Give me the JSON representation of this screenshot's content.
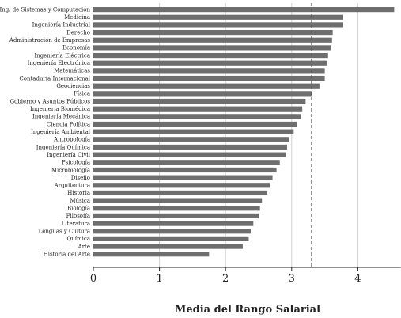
{
  "chart_data": {
    "type": "bar",
    "orientation": "horizontal",
    "title": "",
    "xlabel": "Media del Rango Salarial",
    "ylabel": "",
    "xlim": [
      0,
      4.65
    ],
    "xticks": [
      "0",
      "1",
      "2",
      "3",
      "4"
    ],
    "grid": true,
    "reference_line": 3.3,
    "bar_color": "#6e6e6e",
    "categories": [
      "Ing. de Sistemas y Computación",
      "Medicina",
      "Ingeniería Industrial",
      "Derecho",
      "Administración de Empresas",
      "Economía",
      "Ingeniería Eléctrica",
      "Ingeniería Electrónica",
      "Matemáticas",
      "Contaduría Internacional",
      "Geociencias",
      "Física",
      "Gobierno y Asuntos Públicos",
      "Ingeniería Biomédica",
      "Ingeniería Mecánica",
      "Ciencia Política",
      "Ingeniería Ambiental",
      "Antropología",
      "Ingeniería Química",
      "Ingeniería Civil",
      "Psicología",
      "Microbiología",
      "Diseño",
      "Arquitectura",
      "Historia",
      "Música",
      "Biología",
      "Filosofía",
      "Literatura",
      "Lenguas y Cultura",
      "Química",
      "Arte",
      "Historia del Arte"
    ],
    "values": [
      4.55,
      3.78,
      3.78,
      3.62,
      3.61,
      3.6,
      3.55,
      3.54,
      3.5,
      3.5,
      3.42,
      3.3,
      3.21,
      3.16,
      3.14,
      3.08,
      3.03,
      2.96,
      2.93,
      2.91,
      2.82,
      2.77,
      2.71,
      2.67,
      2.62,
      2.55,
      2.52,
      2.5,
      2.42,
      2.38,
      2.35,
      2.26,
      1.75
    ]
  }
}
